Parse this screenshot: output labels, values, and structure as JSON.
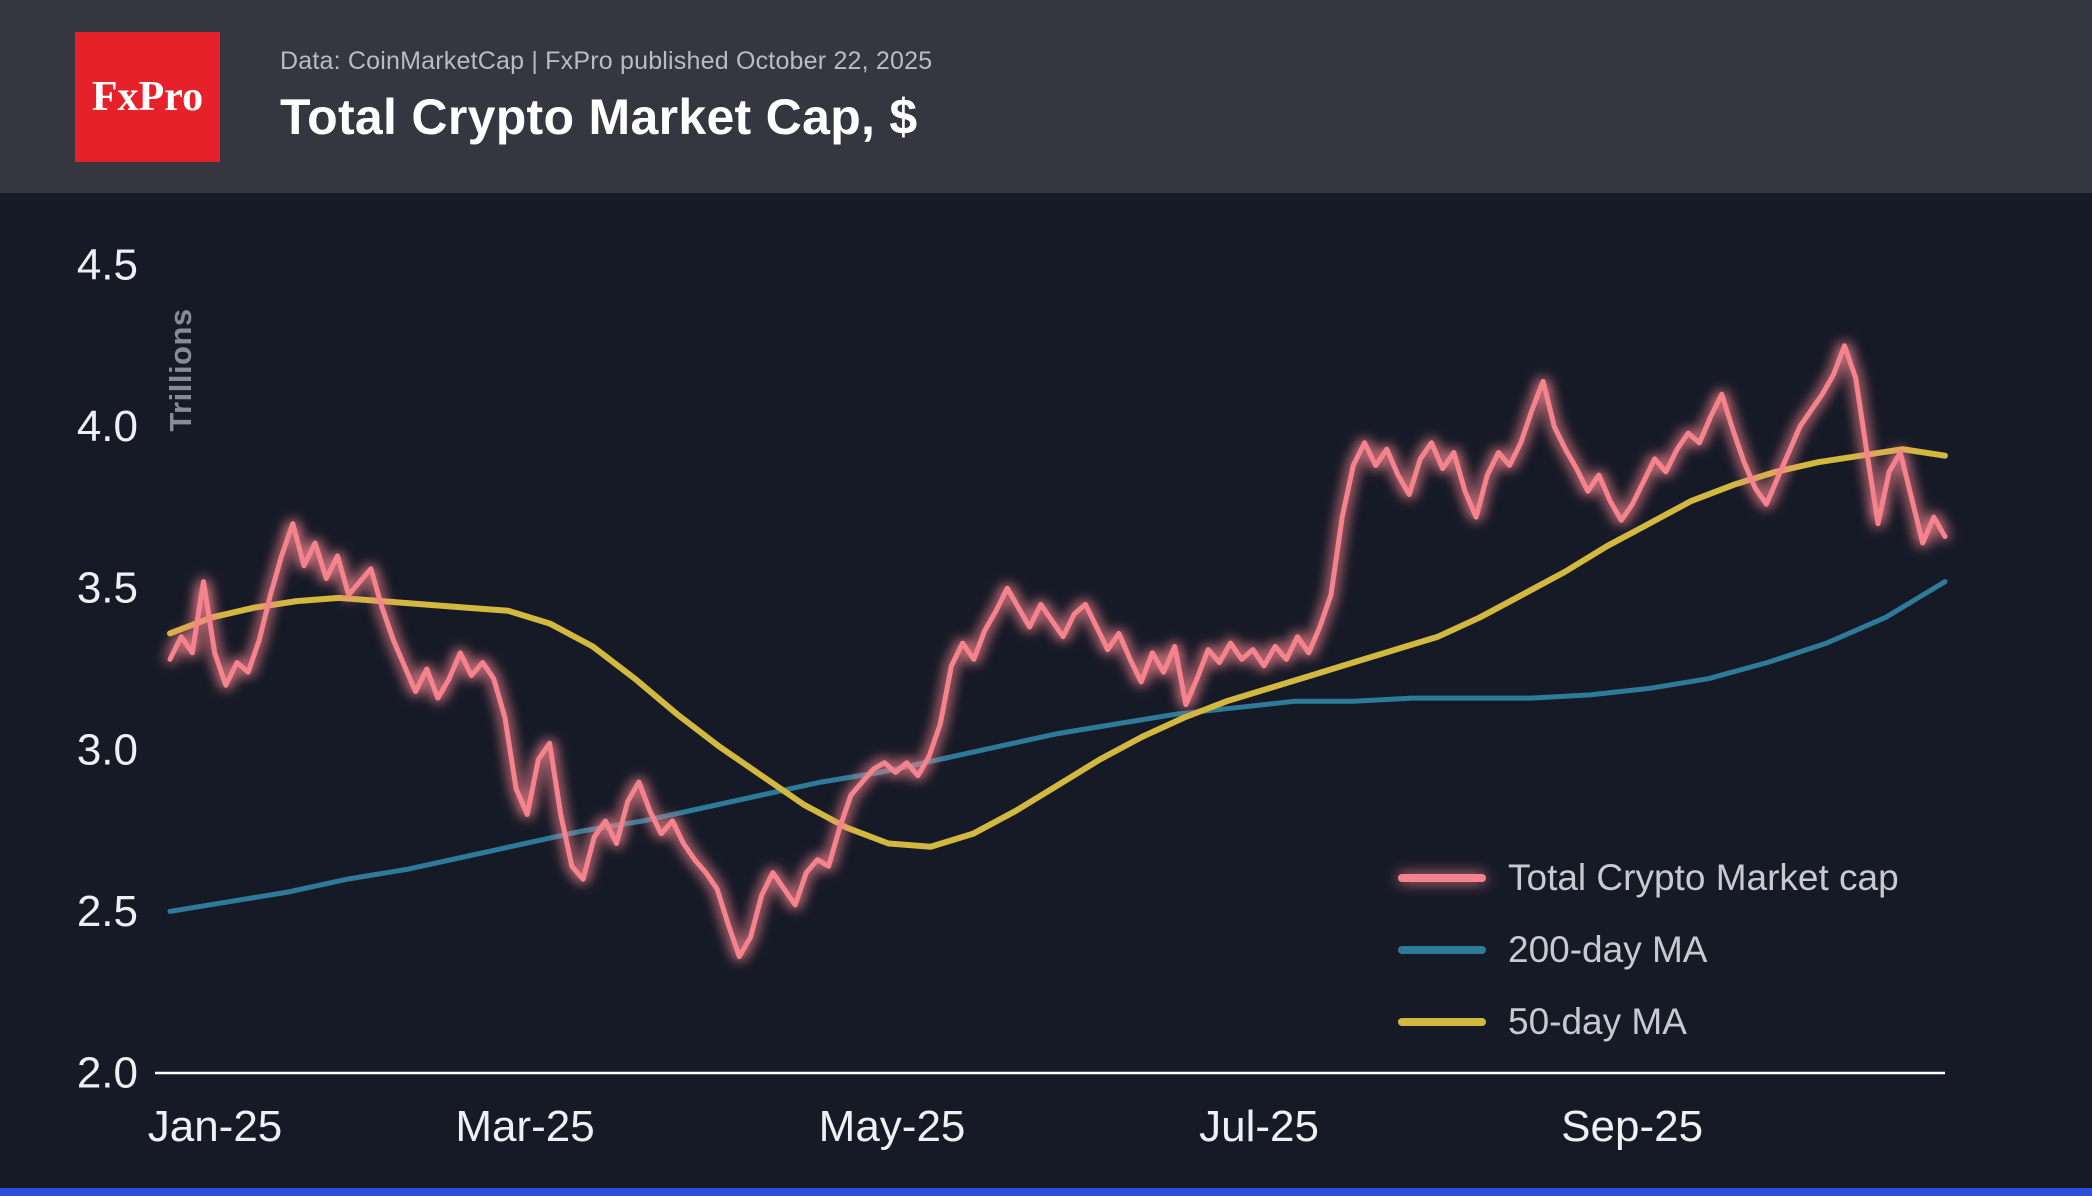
{
  "header": {
    "logo_text": "FxPro",
    "subtitle": "Data: CoinMarketCap | FxPro published October 22, 2025",
    "title": "Total Crypto Market Cap, $"
  },
  "chart_data": {
    "type": "line",
    "title": "Total Crypto Market Cap, $",
    "xlabel": "",
    "ylabel": "Trillions",
    "ylim": [
      2.0,
      4.5
    ],
    "grid": false,
    "legend_position": "bottom-right",
    "axis_color": "#ffffff",
    "background_color": "#161a27",
    "total_days": 295,
    "y_ticks": [
      {
        "label": "2.0",
        "value": 2.0
      },
      {
        "label": "2.5",
        "value": 2.5
      },
      {
        "label": "3.0",
        "value": 3.0
      },
      {
        "label": "3.5",
        "value": 3.5
      },
      {
        "label": "4.0",
        "value": 4.0
      },
      {
        "label": "4.5",
        "value": 4.5
      }
    ],
    "x_ticks": [
      {
        "label": "Jan-25",
        "day": 0
      },
      {
        "label": "Mar-25",
        "day": 59
      },
      {
        "label": "May-25",
        "day": 120
      },
      {
        "label": "Jul-25",
        "day": 181
      },
      {
        "label": "Sep-25",
        "day": 243
      }
    ],
    "series": [
      {
        "name": "Total Crypto Market cap",
        "color": "#f5838d",
        "width": 5,
        "glow": true,
        "values": [
          3.28,
          3.35,
          3.3,
          3.52,
          3.3,
          3.2,
          3.27,
          3.24,
          3.34,
          3.48,
          3.6,
          3.7,
          3.57,
          3.64,
          3.53,
          3.6,
          3.48,
          3.52,
          3.56,
          3.44,
          3.34,
          3.26,
          3.18,
          3.25,
          3.16,
          3.22,
          3.3,
          3.23,
          3.27,
          3.22,
          3.1,
          2.88,
          2.8,
          2.97,
          3.02,
          2.8,
          2.64,
          2.6,
          2.73,
          2.78,
          2.71,
          2.84,
          2.9,
          2.81,
          2.74,
          2.78,
          2.71,
          2.66,
          2.62,
          2.57,
          2.46,
          2.36,
          2.42,
          2.55,
          2.62,
          2.57,
          2.52,
          2.62,
          2.66,
          2.64,
          2.76,
          2.86,
          2.9,
          2.94,
          2.96,
          2.93,
          2.96,
          2.92,
          2.98,
          3.08,
          3.26,
          3.33,
          3.28,
          3.37,
          3.43,
          3.5,
          3.44,
          3.38,
          3.45,
          3.4,
          3.35,
          3.42,
          3.45,
          3.38,
          3.31,
          3.36,
          3.28,
          3.21,
          3.3,
          3.24,
          3.32,
          3.14,
          3.22,
          3.31,
          3.27,
          3.33,
          3.28,
          3.31,
          3.26,
          3.32,
          3.28,
          3.35,
          3.3,
          3.38,
          3.48,
          3.72,
          3.88,
          3.95,
          3.88,
          3.93,
          3.85,
          3.79,
          3.9,
          3.95,
          3.87,
          3.92,
          3.8,
          3.72,
          3.85,
          3.92,
          3.88,
          3.95,
          4.05,
          4.14,
          4.0,
          3.93,
          3.87,
          3.8,
          3.85,
          3.77,
          3.71,
          3.76,
          3.83,
          3.9,
          3.86,
          3.93,
          3.98,
          3.95,
          4.03,
          4.1,
          3.99,
          3.89,
          3.81,
          3.76,
          3.84,
          3.92,
          4.0,
          4.05,
          4.1,
          4.16,
          4.25,
          4.15,
          3.92,
          3.7,
          3.86,
          3.92,
          3.78,
          3.64,
          3.72,
          3.66
        ]
      },
      {
        "name": "200-day MA",
        "color": "#2d7b99",
        "width": 5,
        "glow": false,
        "values": [
          2.5,
          2.53,
          2.56,
          2.6,
          2.63,
          2.67,
          2.71,
          2.75,
          2.78,
          2.82,
          2.86,
          2.9,
          2.93,
          2.97,
          3.01,
          3.05,
          3.08,
          3.11,
          3.13,
          3.15,
          3.15,
          3.16,
          3.16,
          3.16,
          3.17,
          3.19,
          3.22,
          3.27,
          3.33,
          3.41,
          3.52
        ]
      },
      {
        "name": "50-day MA",
        "color": "#d3b83f",
        "width": 6,
        "glow": false,
        "values": [
          3.36,
          3.41,
          3.44,
          3.46,
          3.47,
          3.46,
          3.45,
          3.44,
          3.43,
          3.39,
          3.32,
          3.22,
          3.11,
          3.01,
          2.92,
          2.83,
          2.76,
          2.71,
          2.7,
          2.74,
          2.81,
          2.89,
          2.97,
          3.04,
          3.1,
          3.15,
          3.19,
          3.23,
          3.27,
          3.31,
          3.35,
          3.41,
          3.48,
          3.55,
          3.63,
          3.7,
          3.77,
          3.82,
          3.86,
          3.89,
          3.91,
          3.93,
          3.91
        ]
      }
    ]
  }
}
